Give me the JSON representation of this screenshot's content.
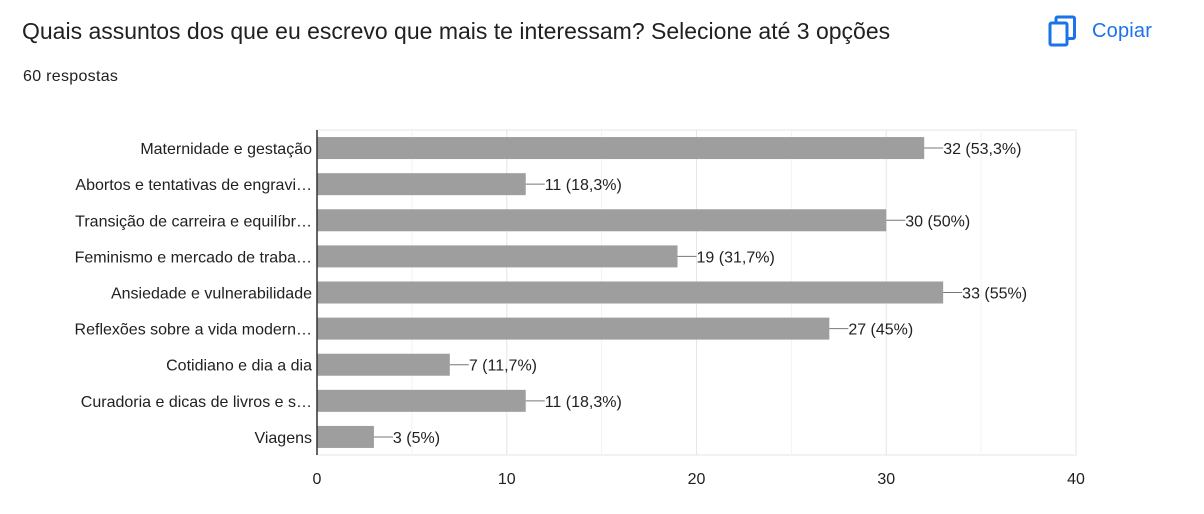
{
  "header": {
    "title": "Quais assuntos dos que eu escrevo que mais te interessam? Selecione até 3 opções",
    "responses": "60 respostas",
    "copy_label": "Copiar",
    "copy_icon": "copy-icon"
  },
  "colors": {
    "bar": "#9e9e9e",
    "accent": "#1a73e8",
    "axis": "#333333",
    "grid": "#e6e6e6",
    "text": "#202124"
  },
  "chart_data": {
    "type": "bar",
    "orientation": "horizontal",
    "categories": [
      "Maternidade e gestação",
      "Abortos e tentativas de engravi…",
      "Transição de carreira e equilíbr…",
      "Feminismo e mercado de traba…",
      "Ansiedade e vulnerabilidade",
      "Reflexões sobre a vida modern…",
      "Cotidiano e dia a dia",
      "Curadoria e dicas de livros e s…",
      "Viagens"
    ],
    "values": [
      32,
      11,
      30,
      19,
      33,
      27,
      7,
      11,
      3
    ],
    "data_labels": [
      "32 (53,3%)",
      "11 (18,3%)",
      "30 (50%)",
      "19 (31,7%)",
      "33 (55%)",
      "27 (45%)",
      "7 (11,7%)",
      "11 (18,3%)",
      "3 (5%)"
    ],
    "xlim": [
      0,
      40
    ],
    "xticks": [
      0,
      10,
      20,
      30,
      40
    ],
    "grid": true,
    "legend": "none"
  }
}
